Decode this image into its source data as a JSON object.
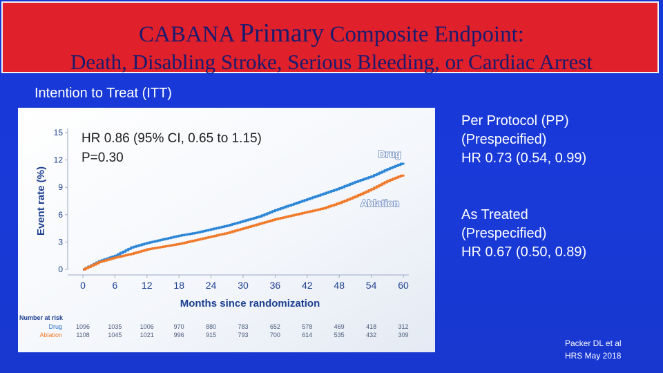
{
  "header": {
    "title_line1_a": "CABANA",
    "title_line1_b": "Primary",
    "title_line1_c": "Composite Endpoint:",
    "title_line2": "Death, Disabling Stroke, Serious Bleeding, or Cardiac Arrest"
  },
  "subtitle": "Intention to Treat (ITT)",
  "colors": {
    "background": "#1a3ad8",
    "banner": "#e0202a",
    "title_text": "#1b1b6e",
    "drug_line": "#2e86d6",
    "ablation_line": "#f07a2a",
    "chart_text": "#1d3f8f"
  },
  "chart_data": {
    "type": "line",
    "annotation_hr": "HR 0.86 (95% CI, 0.65 to 1.15)",
    "annotation_p": "P=0.30",
    "xlabel": "Months since randomization",
    "ylabel": "Event rate (%)",
    "xlim": [
      0,
      60
    ],
    "ylim": [
      0,
      15
    ],
    "x_ticks": [
      "0",
      "6",
      "12",
      "18",
      "24",
      "30",
      "36",
      "42",
      "48",
      "54",
      "60"
    ],
    "y_ticks": [
      "0",
      "3",
      "6",
      "9",
      "12",
      "15"
    ],
    "grid": false,
    "x": [
      0,
      3,
      6,
      9,
      12,
      15,
      18,
      21,
      24,
      27,
      30,
      33,
      36,
      39,
      42,
      45,
      48,
      51,
      54,
      57,
      60
    ],
    "series": [
      {
        "name": "Drug",
        "values": [
          0.0,
          0.9,
          1.5,
          2.4,
          2.9,
          3.3,
          3.7,
          4.0,
          4.4,
          4.8,
          5.3,
          5.8,
          6.5,
          7.1,
          7.7,
          8.3,
          8.9,
          9.6,
          10.2,
          11.0,
          11.7
        ]
      },
      {
        "name": "Ablation",
        "values": [
          0.0,
          0.8,
          1.3,
          1.7,
          2.2,
          2.5,
          2.8,
          3.2,
          3.6,
          4.0,
          4.5,
          5.0,
          5.5,
          5.9,
          6.3,
          6.7,
          7.3,
          8.0,
          8.8,
          9.7,
          10.4
        ]
      }
    ],
    "number_at_risk": {
      "label": "Number at risk",
      "rows": [
        {
          "name": "Drug",
          "values": [
            "1096",
            "1035",
            "1006",
            "970",
            "880",
            "783",
            "652",
            "578",
            "469",
            "418",
            "312"
          ]
        },
        {
          "name": "Ablation",
          "values": [
            "1108",
            "1045",
            "1021",
            "996",
            "915",
            "793",
            "700",
            "614",
            "535",
            "432",
            "309"
          ]
        }
      ]
    }
  },
  "side_panel": {
    "pp_line1": "Per Protocol (PP)",
    "pp_line2": "(Prespecified)",
    "pp_line3": "HR 0.73 (0.54, 0.99)",
    "at_line1": "As Treated",
    "at_line2": "(Prespecified)",
    "at_line3": "HR 0.67 (0.50, 0.89)"
  },
  "reference": {
    "line1": "Packer DL et al",
    "line2": "HRS May 2018"
  }
}
